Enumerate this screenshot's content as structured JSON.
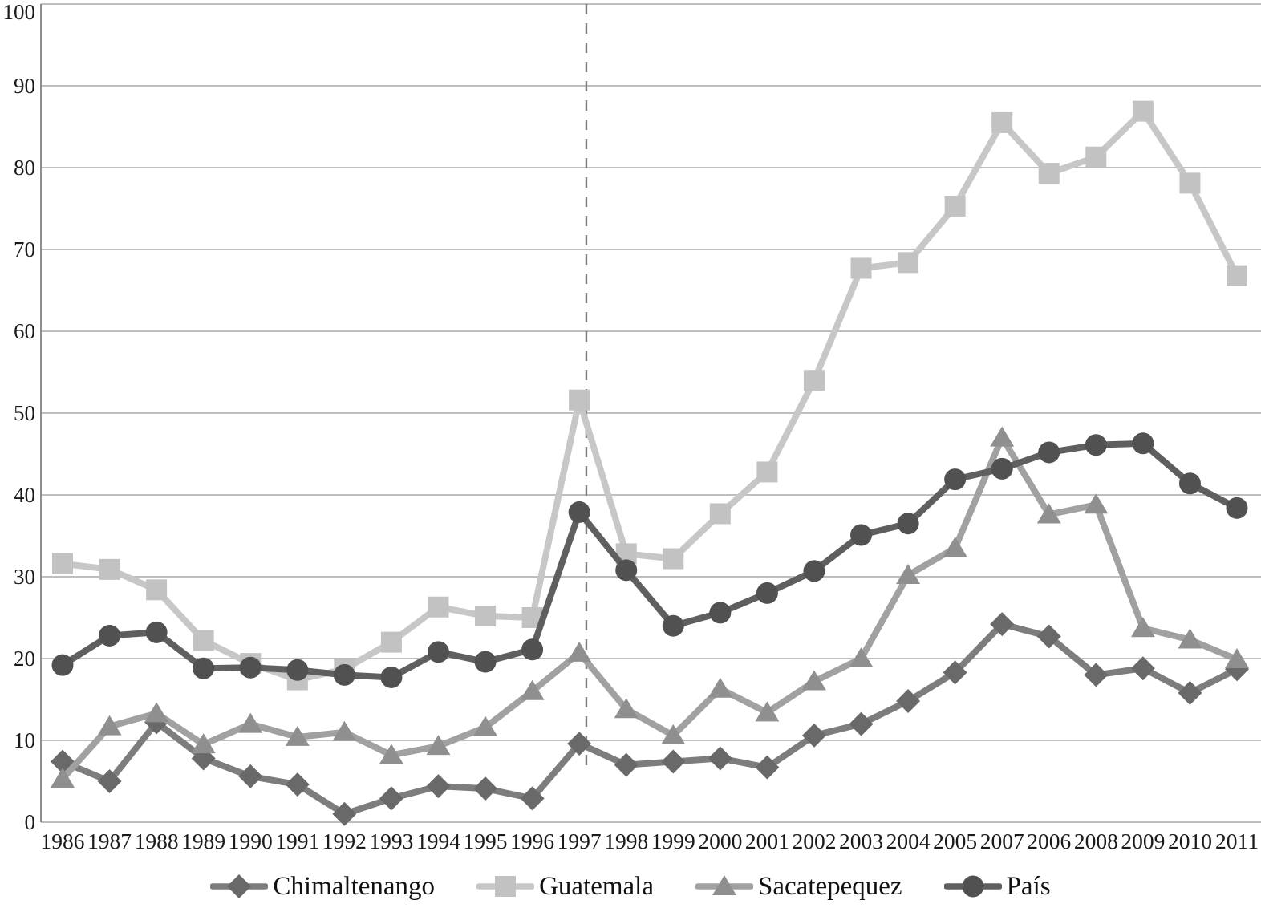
{
  "chart_data": {
    "type": "line",
    "title": "",
    "xlabel": "",
    "ylabel": "",
    "ylim": [
      0,
      100
    ],
    "y_tick_step": 10,
    "y_tick_labels": [
      "0",
      "10",
      "20",
      "30",
      "40",
      "50",
      "60",
      "70",
      "80",
      "90",
      "100"
    ],
    "grid": "horizontal",
    "legend_position": "bottom",
    "categories": [
      "1986",
      "1987",
      "1988",
      "1989",
      "1990",
      "1991",
      "1992",
      "1993",
      "1994",
      "1995",
      "1996",
      "1997",
      "1998",
      "1999",
      "2000",
      "2001",
      "2002",
      "2003",
      "2004",
      "2005",
      "2007",
      "2006",
      "2008",
      "2009",
      "2010",
      "2011"
    ],
    "series": [
      {
        "name": "Chimaltenango",
        "marker": "diamond",
        "line_color": "#7d7d7d",
        "marker_color": "#696969",
        "values": [
          7.4,
          5.0,
          12.2,
          7.8,
          5.6,
          4.6,
          1.0,
          2.9,
          4.4,
          4.1,
          2.9,
          9.6,
          7.0,
          7.4,
          7.8,
          6.7,
          10.6,
          12.0,
          14.8,
          18.3,
          24.2,
          22.7,
          18.0,
          18.8,
          15.8,
          18.7
        ]
      },
      {
        "name": "Guatemala",
        "marker": "square",
        "line_color": "#c7c7c7",
        "marker_color": "#c2c2c2",
        "values": [
          31.6,
          30.9,
          28.4,
          22.2,
          19.4,
          17.4,
          18.7,
          22.0,
          26.3,
          25.2,
          25.0,
          51.6,
          32.8,
          32.2,
          37.7,
          42.8,
          54.0,
          67.7,
          68.4,
          75.3,
          85.5,
          79.3,
          81.3,
          86.9,
          78.1,
          66.8
        ]
      },
      {
        "name": "Sacatepequez",
        "marker": "triangle",
        "line_color": "#a1a1a1",
        "marker_color": "#8f8f8f",
        "values": [
          5.3,
          11.7,
          13.3,
          9.5,
          12.0,
          10.4,
          11.0,
          8.2,
          9.3,
          11.6,
          16.0,
          20.7,
          13.8,
          10.6,
          16.3,
          13.4,
          17.2,
          20.0,
          30.2,
          33.5,
          47.0,
          37.6,
          38.8,
          23.7,
          22.3,
          19.9
        ]
      },
      {
        "name": "País",
        "marker": "circle",
        "line_color": "#5f5f5f",
        "marker_color": "#515151",
        "values": [
          19.2,
          22.8,
          23.2,
          18.8,
          18.9,
          18.6,
          18.0,
          17.7,
          20.8,
          19.6,
          21.1,
          37.9,
          30.8,
          24.0,
          25.6,
          28.0,
          30.7,
          35.1,
          36.5,
          41.9,
          43.2,
          45.2,
          46.1,
          46.3,
          41.4,
          38.4
        ]
      }
    ],
    "annotations": [
      {
        "type": "vline",
        "style": "dashed",
        "x_index": 11.15,
        "y_from_value": 6.2,
        "y_to_value": 100,
        "color": "#7f7f7f"
      }
    ],
    "colors": {
      "gridline": "#a9a9a9",
      "axis": "#8f8f8f",
      "tick_text": "#1a1a1a"
    }
  },
  "legend": {
    "items": [
      "Chimaltenango",
      "Guatemala",
      "Sacatepequez",
      "País"
    ]
  }
}
